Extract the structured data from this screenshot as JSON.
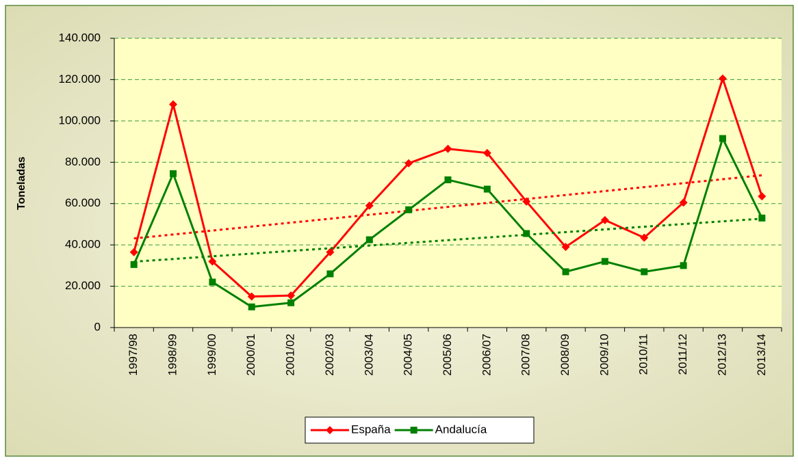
{
  "chart_data": {
    "type": "line",
    "y_label": "Toneladas",
    "categories": [
      "1997/98",
      "1998/99",
      "1999/00",
      "2000/01",
      "2001/02",
      "2002/03",
      "2003/04",
      "2004/05",
      "2005/06",
      "2006/07",
      "2007/08",
      "2008/09",
      "2009/10",
      "2010/11",
      "2011/12",
      "2012/13",
      "2013/14"
    ],
    "series": [
      {
        "name": "España",
        "color": "#ff0000",
        "marker": "diamond",
        "values": [
          36500,
          108000,
          32000,
          15000,
          15500,
          36500,
          59000,
          79500,
          86500,
          84500,
          61000,
          39000,
          52000,
          43500,
          60500,
          120500,
          63500
        ]
      },
      {
        "name": "Andalucía",
        "color": "#008000",
        "marker": "square",
        "values": [
          30500,
          74500,
          22000,
          10000,
          12000,
          26000,
          42500,
          57000,
          71500,
          67000,
          45500,
          27000,
          32000,
          27000,
          30000,
          91500,
          53000
        ]
      }
    ],
    "ylim": [
      0,
      140000
    ],
    "yticks": [
      0,
      {
        "value": 20000,
        "label": "20.000"
      },
      {
        "value": 40000,
        "label": "40.000"
      },
      {
        "value": 60000,
        "label": "60.000"
      },
      {
        "value": 80000,
        "label": "80.000"
      },
      {
        "value": 100000,
        "label": "100.000"
      },
      {
        "value": 120000,
        "label": "120.000"
      },
      {
        "value": 140000,
        "label": "140.000"
      }
    ],
    "grid": true,
    "trendline": true,
    "legend": "bottom"
  }
}
